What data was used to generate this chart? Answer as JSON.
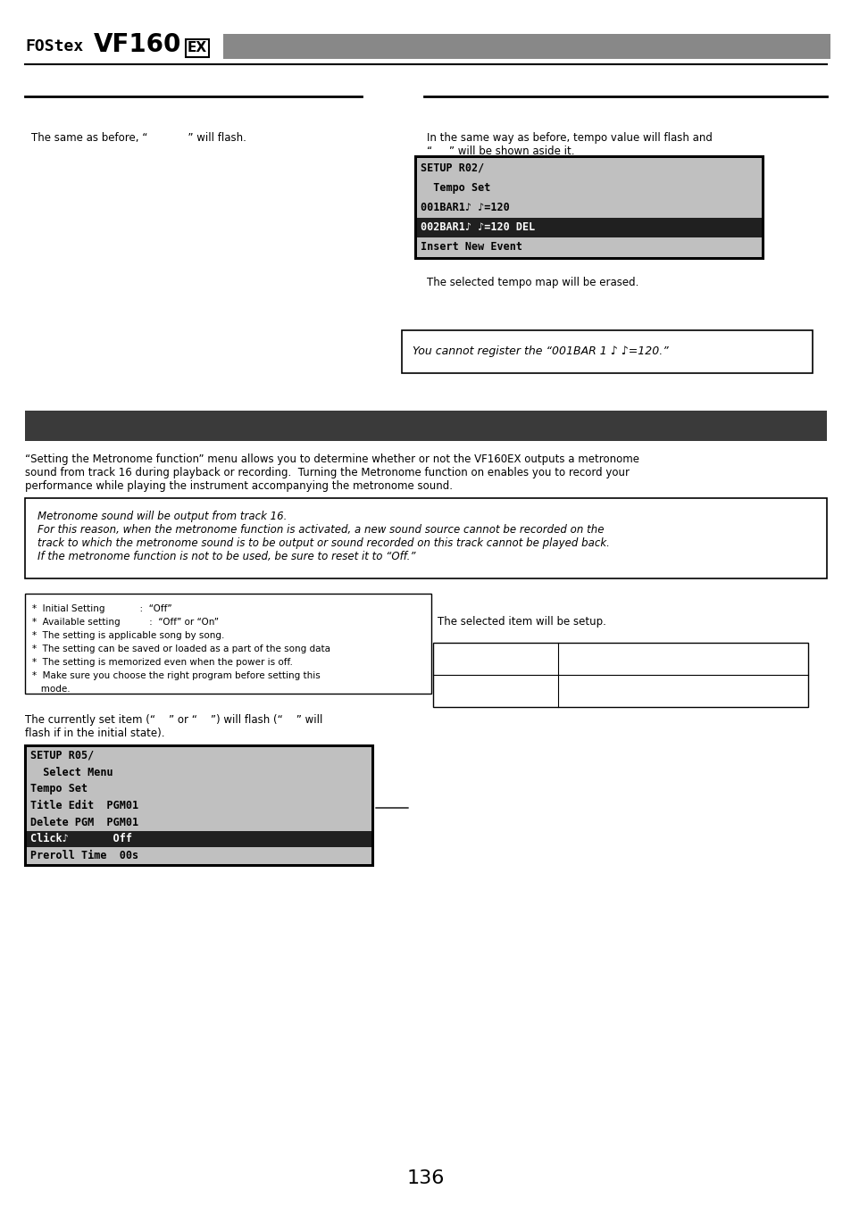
{
  "page_number": "136",
  "bg_color": "#ffffff",
  "header_bar_color": "#888888",
  "dark_bar_color": "#3a3a3a",
  "sections": {
    "top_left_text": "The same as before, “            ” will flash.",
    "top_right_line1": "In the same way as before, tempo value will flash and",
    "top_right_line2": "“     ” will be shown aside it.",
    "screen1_lines": [
      "SETUP R02/",
      "  Tempo Set",
      "001BAR1♪ ♪=120",
      "002BAR1♪ ♪=120 DEL",
      "Insert New Event"
    ],
    "screen1_highlight_row": 3,
    "erased_text": "The selected tempo map will be erased.",
    "cannot_register_text": "You cannot register the “001BAR 1 ♪ ♪=120.”",
    "metronome_intro_line1": "“Setting the Metronome function” menu allows you to determine whether or not the VF160EX outputs a metronome",
    "metronome_intro_line2": "sound from track 16 during playback or recording.  Turning the Metronome function on enables you to record your",
    "metronome_intro_line3": "performance while playing the instrument accompanying the metronome sound.",
    "note_line1": "Metronome sound will be output from track 16.",
    "note_line2": "For this reason, when the metronome function is activated, a new sound source cannot be recorded on the",
    "note_line3": "track to which the metronome sound is to be output or sound recorded on this track cannot be played back.",
    "note_line4": "If the metronome function is not to be used, be sure to reset it to “Off.”",
    "bullet_points": [
      "*  Initial Setting            :  “Off”",
      "*  Available setting          :  “Off” or “On”",
      "*  The setting is applicable song by song.",
      "*  The setting can be saved or loaded as a part of the song data",
      "*  The setting is memorized even when the power is off.",
      "*  Make sure you choose the right program before setting this",
      "   mode."
    ],
    "selected_item_text": "The selected item will be setup.",
    "flash_line1": "The currently set item (“    ” or “    ”) will flash (“    ” will",
    "flash_line2": "flash if in the initial state).",
    "screen2_lines": [
      "SETUP R05/",
      "  Select Menu",
      "Tempo Set",
      "Title Edit  PGM01",
      "Delete PGM  PGM01",
      "Click♪       Off",
      "Preroll Time  00s"
    ],
    "screen2_highlight_row": 5
  }
}
